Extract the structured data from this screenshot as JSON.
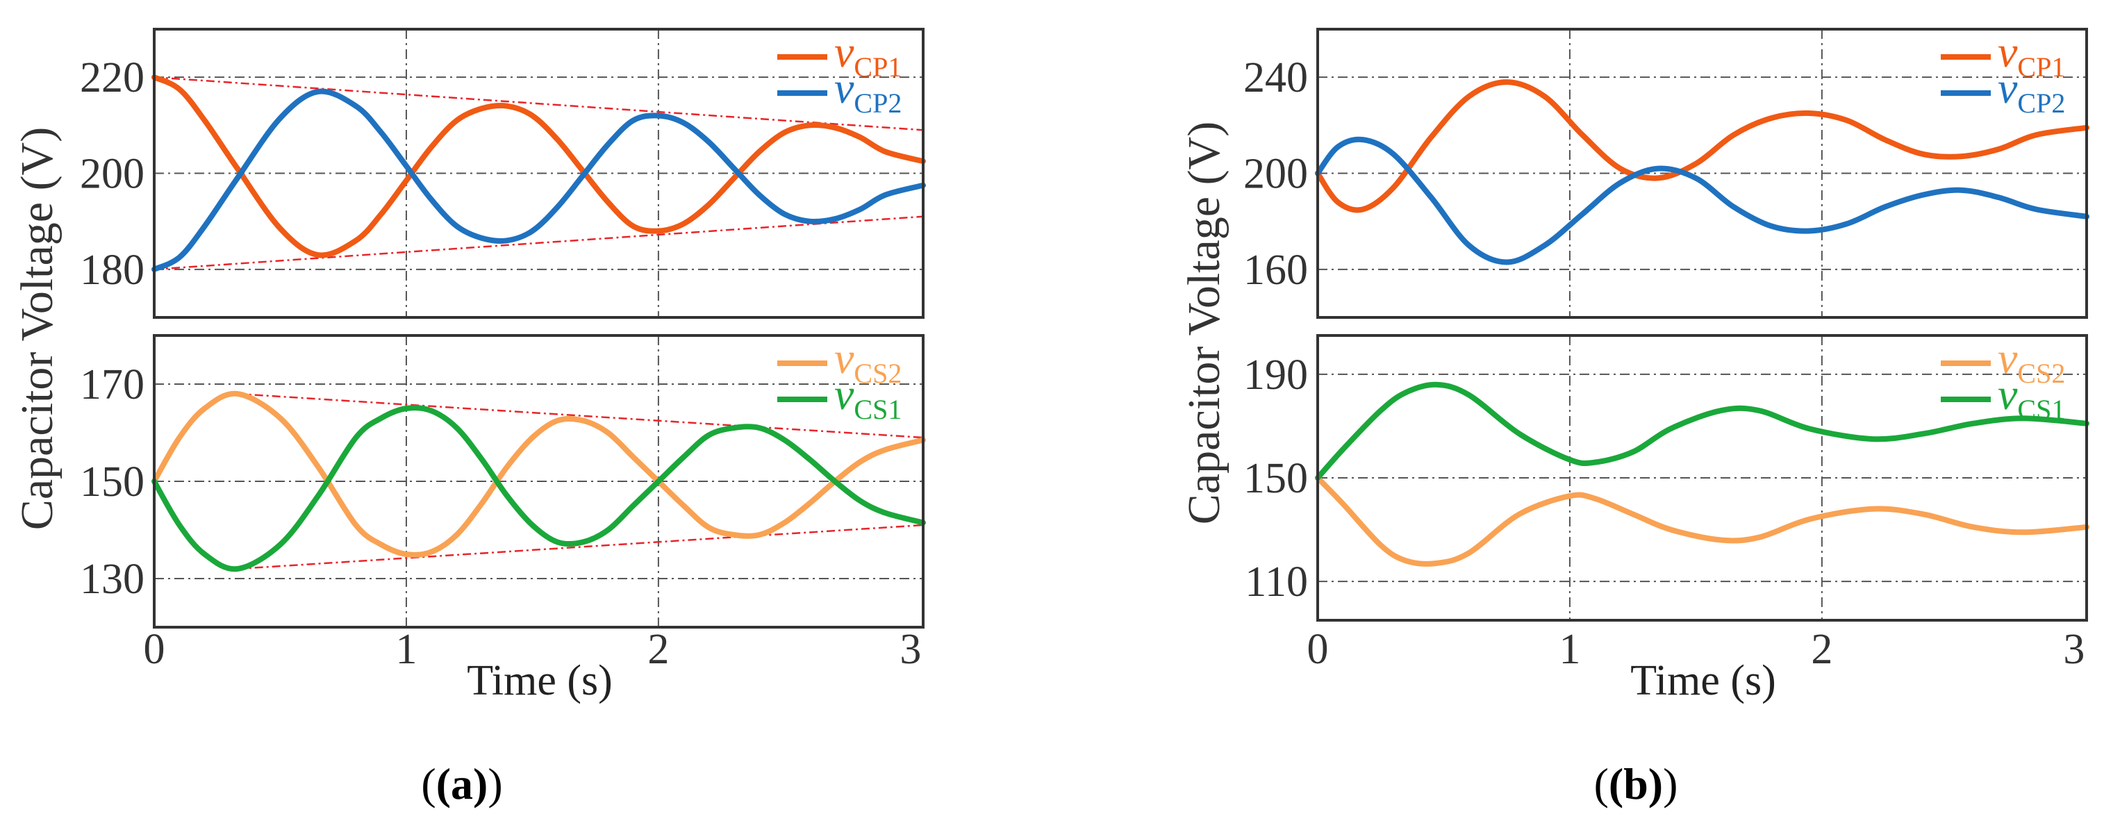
{
  "chart_data": [
    {
      "type": "line",
      "panel": "(a)",
      "ylabel": "Capacitor Voltage (V)",
      "xlabel": "Time (s)",
      "xlim": [
        0,
        3.05
      ],
      "xticks": [
        "0",
        "1",
        "2",
        "3"
      ],
      "subplots": [
        {
          "ylim": [
            170,
            230
          ],
          "yticks": [
            180,
            200,
            220
          ],
          "series": [
            {
              "var": "v",
              "sub": "CP1",
              "color": "#f05a14",
              "x": [
                0,
                0.1,
                0.2,
                0.33,
                0.5,
                0.65,
                0.8,
                0.9,
                1.0,
                1.1,
                1.2,
                1.3,
                1.4,
                1.5,
                1.6,
                1.7,
                1.8,
                1.9,
                2.0,
                2.1,
                2.2,
                2.3,
                2.4,
                2.5,
                2.6,
                2.7,
                2.8,
                2.9,
                3.05
              ],
              "values": [
                220,
                217.5,
                211,
                201,
                188.5,
                183,
                186,
                191.5,
                198.5,
                205.5,
                211,
                213.5,
                214,
                212,
                207,
                200.5,
                194,
                189,
                188,
                189.5,
                193.5,
                199,
                204.5,
                208.5,
                210,
                209.5,
                207.5,
                204.5,
                202.5
              ]
            },
            {
              "var": "v",
              "sub": "CP2",
              "color": "#1f72c0",
              "x": [
                0,
                0.1,
                0.2,
                0.33,
                0.5,
                0.65,
                0.8,
                0.9,
                1.0,
                1.1,
                1.2,
                1.3,
                1.4,
                1.5,
                1.6,
                1.7,
                1.8,
                1.9,
                2.0,
                2.1,
                2.2,
                2.3,
                2.4,
                2.5,
                2.6,
                2.7,
                2.8,
                2.9,
                3.05
              ],
              "values": [
                180,
                182.5,
                189,
                199,
                211.5,
                217,
                214,
                208.5,
                201.5,
                194.5,
                189,
                186.5,
                186,
                188,
                193,
                199.5,
                206,
                211,
                212,
                210.5,
                206.5,
                201,
                195.5,
                191.5,
                190,
                190.5,
                192.5,
                195.5,
                197.5
              ]
            }
          ],
          "envelope": [
            {
              "x": [
                0,
                3.05
              ],
              "values": [
                220,
                209
              ]
            },
            {
              "x": [
                0,
                3.05
              ],
              "values": [
                180,
                191
              ]
            }
          ]
        },
        {
          "ylim": [
            120,
            180
          ],
          "yticks": [
            130,
            150,
            170
          ],
          "series": [
            {
              "var": "v",
              "sub": "CS2",
              "color": "#f9a253",
              "x": [
                0,
                0.1,
                0.2,
                0.33,
                0.5,
                0.65,
                0.8,
                0.9,
                1.0,
                1.1,
                1.2,
                1.3,
                1.4,
                1.5,
                1.6,
                1.7,
                1.8,
                1.9,
                2.0,
                2.1,
                2.2,
                2.3,
                2.4,
                2.5,
                2.6,
                2.7,
                2.8,
                2.9,
                3.05
              ],
              "values": [
                150,
                159,
                165,
                168,
                163,
                153,
                141,
                137,
                135,
                135.5,
                139,
                145.5,
                153,
                159,
                162.5,
                162.5,
                160,
                155,
                150,
                145,
                140.5,
                139,
                139,
                141.5,
                145.5,
                150,
                154,
                156.5,
                158.5
              ]
            },
            {
              "var": "v",
              "sub": "CS1",
              "color": "#1aa83a",
              "x": [
                0,
                0.1,
                0.2,
                0.33,
                0.5,
                0.65,
                0.8,
                0.9,
                1.0,
                1.1,
                1.2,
                1.3,
                1.4,
                1.5,
                1.6,
                1.7,
                1.8,
                1.9,
                2.0,
                2.1,
                2.2,
                2.3,
                2.4,
                2.5,
                2.6,
                2.7,
                2.8,
                2.9,
                3.05
              ],
              "values": [
                150,
                141,
                135,
                132,
                137,
                147,
                159,
                163,
                165,
                164.5,
                161,
                154.5,
                147,
                141,
                137.5,
                137.5,
                140,
                145,
                150,
                155,
                159.5,
                161,
                161,
                158.5,
                154.5,
                150,
                146,
                143.5,
                141.5
              ]
            }
          ],
          "envelope": [
            {
              "x": [
                0.33,
                3.05
              ],
              "values": [
                168,
                159
              ]
            },
            {
              "x": [
                0.33,
                3.05
              ],
              "values": [
                132,
                141
              ]
            }
          ]
        }
      ]
    },
    {
      "type": "line",
      "panel": "(b)",
      "ylabel": "Capacitor Voltage (V)",
      "xlabel": "Time (s)",
      "xlim": [
        0,
        3.05
      ],
      "xticks": [
        "0",
        "1",
        "2",
        "3"
      ],
      "subplots": [
        {
          "ylim": [
            140,
            260
          ],
          "yticks": [
            160,
            200,
            240
          ],
          "series": [
            {
              "var": "v",
              "sub": "CP1",
              "color": "#f05a14",
              "x": [
                0,
                0.08,
                0.18,
                0.3,
                0.45,
                0.6,
                0.75,
                0.9,
                1.05,
                1.2,
                1.35,
                1.5,
                1.65,
                1.8,
                1.95,
                2.1,
                2.25,
                2.4,
                2.55,
                2.7,
                2.85,
                3.05
              ],
              "values": [
                200,
                188,
                185,
                194,
                215,
                232,
                238,
                232,
                216,
                202,
                198,
                204,
                216,
                223,
                225,
                222,
                214,
                208,
                207,
                210,
                216,
                219
              ]
            },
            {
              "var": "v",
              "sub": "CP2",
              "color": "#1f72c0",
              "x": [
                0,
                0.08,
                0.18,
                0.3,
                0.45,
                0.6,
                0.75,
                0.9,
                1.05,
                1.2,
                1.35,
                1.5,
                1.65,
                1.8,
                1.95,
                2.1,
                2.25,
                2.4,
                2.55,
                2.7,
                2.85,
                3.05
              ],
              "values": [
                200,
                211,
                214,
                208,
                190,
                170,
                163,
                170,
                183,
                196,
                202,
                198,
                186,
                178,
                176,
                179,
                186,
                191,
                193,
                190,
                185,
                182
              ]
            }
          ]
        },
        {
          "ylim": [
            95,
            205
          ],
          "yticks": [
            110,
            150,
            190
          ],
          "series": [
            {
              "var": "v",
              "sub": "CS2",
              "color": "#f9a253",
              "x": [
                0,
                0.1,
                0.25,
                0.35,
                0.47,
                0.6,
                0.8,
                1.0,
                1.1,
                1.25,
                1.4,
                1.6,
                1.75,
                1.95,
                2.2,
                2.4,
                2.6,
                2.8,
                3.05
              ],
              "values": [
                150,
                140,
                124,
                118,
                117,
                121,
                136,
                143,
                142,
                136,
                130,
                126,
                127,
                134,
                138,
                136,
                131,
                129,
                131
              ]
            },
            {
              "var": "v",
              "sub": "CS1",
              "color": "#1aa83a",
              "x": [
                0,
                0.1,
                0.25,
                0.35,
                0.47,
                0.6,
                0.8,
                1.0,
                1.1,
                1.25,
                1.4,
                1.6,
                1.75,
                1.95,
                2.2,
                2.4,
                2.6,
                2.8,
                3.05
              ],
              "values": [
                150,
                161,
                176,
                183,
                186,
                182,
                167,
                157,
                156,
                160,
                169,
                176,
                176,
                169,
                165,
                167,
                171,
                173,
                171
              ]
            }
          ]
        }
      ]
    }
  ]
}
